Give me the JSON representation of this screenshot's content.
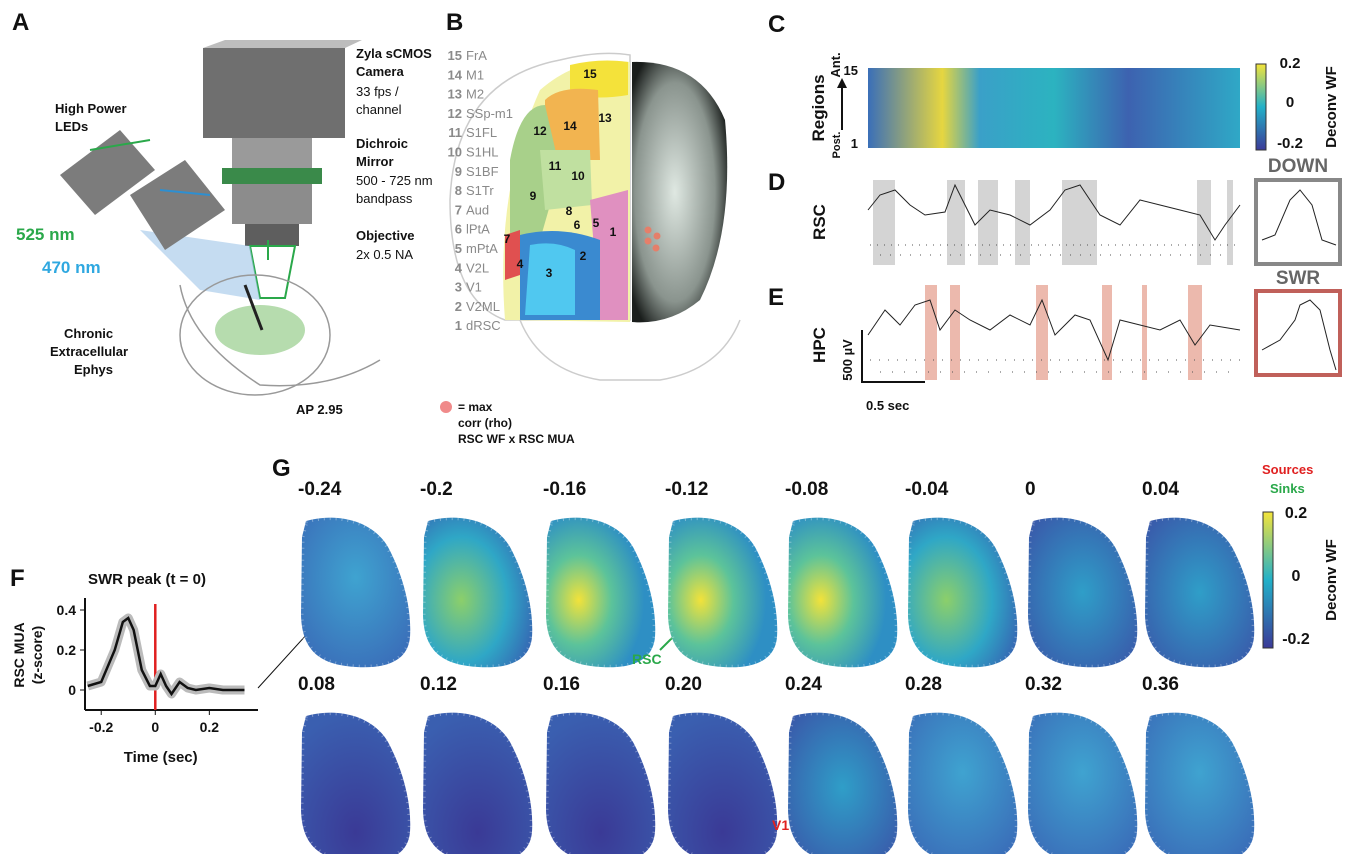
{
  "panel_a": {
    "label": "A",
    "camera": [
      "Zyla sCMOS",
      "Camera"
    ],
    "camera_spec": [
      "33 fps /",
      "channel"
    ],
    "mirror": [
      "Dichroic",
      "Mirror"
    ],
    "mirror_spec": [
      "500 - 725 nm",
      "bandpass"
    ],
    "objective": "Objective",
    "objective_spec": "2x 0.5 NA",
    "leds": [
      "High Power",
      "LEDs"
    ],
    "green_nm": "525 nm",
    "blue_nm": "470 nm",
    "ephys": [
      "Chronic",
      "Extracellular",
      "Ephys"
    ],
    "ap": "AP 2.95"
  },
  "panel_b": {
    "label": "B",
    "regions": [
      {
        "num": "15",
        "name": "FrA"
      },
      {
        "num": "14",
        "name": "M1"
      },
      {
        "num": "13",
        "name": "M2"
      },
      {
        "num": "12",
        "name": "SSp-m1"
      },
      {
        "num": "11",
        "name": "S1FL"
      },
      {
        "num": "10",
        "name": "S1HL"
      },
      {
        "num": "9",
        "name": "S1BF"
      },
      {
        "num": "8",
        "name": "S1Tr"
      },
      {
        "num": "7",
        "name": "Aud"
      },
      {
        "num": "6",
        "name": "lPtA"
      },
      {
        "num": "5",
        "name": "mPtA"
      },
      {
        "num": "4",
        "name": "V2L"
      },
      {
        "num": "3",
        "name": "V1"
      },
      {
        "num": "2",
        "name": "V2ML"
      },
      {
        "num": "1",
        "name": "dRSC"
      }
    ],
    "max_corr": [
      "= max",
      "corr (rho)",
      "RSC WF x RSC MUA"
    ]
  },
  "panel_c": {
    "label": "C",
    "ylabel": "Regions",
    "ant": "Ant.",
    "post": "Post.",
    "top": "15",
    "bottom": "1",
    "colorbar": [
      "0.2",
      "0",
      "-0.2"
    ],
    "colorbar_label": "Deconv WF"
  },
  "panel_d": {
    "label": "D",
    "ylabel": "RSC",
    "inset": "DOWN"
  },
  "panel_e": {
    "label": "E",
    "ylabel": "HPC",
    "inset": "SWR",
    "scale_v": "500 µV",
    "scale_t": "0.5 sec"
  },
  "panel_f": {
    "label": "F",
    "chart_data": {
      "type": "line",
      "title": "SWR peak (t = 0)",
      "y_label": [
        "RSC MUA",
        "(z-score)"
      ],
      "x_label": "Time (sec)",
      "x": [
        -0.25,
        -0.2,
        -0.15,
        -0.12,
        -0.1,
        -0.08,
        -0.05,
        -0.02,
        0,
        0.02,
        0.04,
        0.06,
        0.09,
        0.12,
        0.15,
        0.2,
        0.25,
        0.3,
        0.33
      ],
      "series": [
        {
          "color": "#111111",
          "values": [
            0.02,
            0.04,
            0.2,
            0.34,
            0.36,
            0.3,
            0.1,
            0.02,
            0.02,
            0.08,
            0.02,
            -0.02,
            0.04,
            0.01,
            0.0,
            0.01,
            0.0,
            0.0,
            0.0
          ]
        }
      ],
      "peak_time": 0,
      "xlim": [
        -0.26,
        0.38
      ],
      "ylim": [
        -0.1,
        0.46
      ],
      "xticks": [
        -0.2,
        0,
        0.2
      ],
      "yticks": [
        0,
        0.2,
        0.4
      ]
    }
  },
  "panel_g": {
    "label": "G",
    "times": [
      "-0.24",
      "-0.2",
      "-0.16",
      "-0.12",
      "-0.08",
      "-0.04",
      "0",
      "0.04",
      "0.08",
      "0.12",
      "0.16",
      "0.20",
      "0.24",
      "0.28",
      "0.32",
      "0.36"
    ],
    "sources": "Sources",
    "sinks": "Sinks",
    "rsc": "RSC",
    "v1": "V1",
    "colorbar": [
      "0.2",
      "0",
      "-0.2"
    ],
    "colorbar_label": "Deconv WF"
  }
}
